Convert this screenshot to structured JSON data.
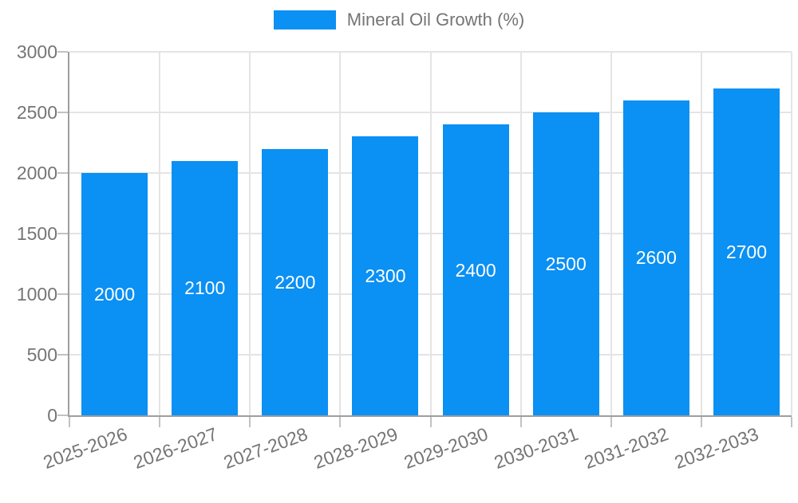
{
  "legend": {
    "label": "Mineral Oil Growth (%)"
  },
  "chart_data": {
    "type": "bar",
    "title": "",
    "series_name": "Mineral Oil Growth (%)",
    "categories": [
      "2025-2026",
      "2026-2027",
      "2027-2028",
      "2028-2029",
      "2029-2030",
      "2030-2031",
      "2031-2032",
      "2032-2033"
    ],
    "values": [
      2000,
      2100,
      2200,
      2300,
      2400,
      2500,
      2600,
      2700
    ],
    "bar_value_labels": [
      "2000",
      "2100",
      "2200",
      "2300",
      "2400",
      "2500",
      "2600",
      "2700"
    ],
    "xlabel": "",
    "ylabel": "",
    "ylim": [
      0,
      3000
    ],
    "yticks": [
      0,
      500,
      1000,
      1500,
      2000,
      2500,
      3000
    ],
    "grid": true,
    "legend_position": "top-center",
    "bar_labels_inside": true,
    "x_label_rotation_deg": -20,
    "colors": {
      "bar": "#0b90f3",
      "bar_label": "#ffffff",
      "axis_text": "#757575",
      "axis_line": "#9e9e9e",
      "gridline": "#e4e4e4",
      "tick": "#c2c2c2",
      "background": "#ffffff"
    }
  }
}
